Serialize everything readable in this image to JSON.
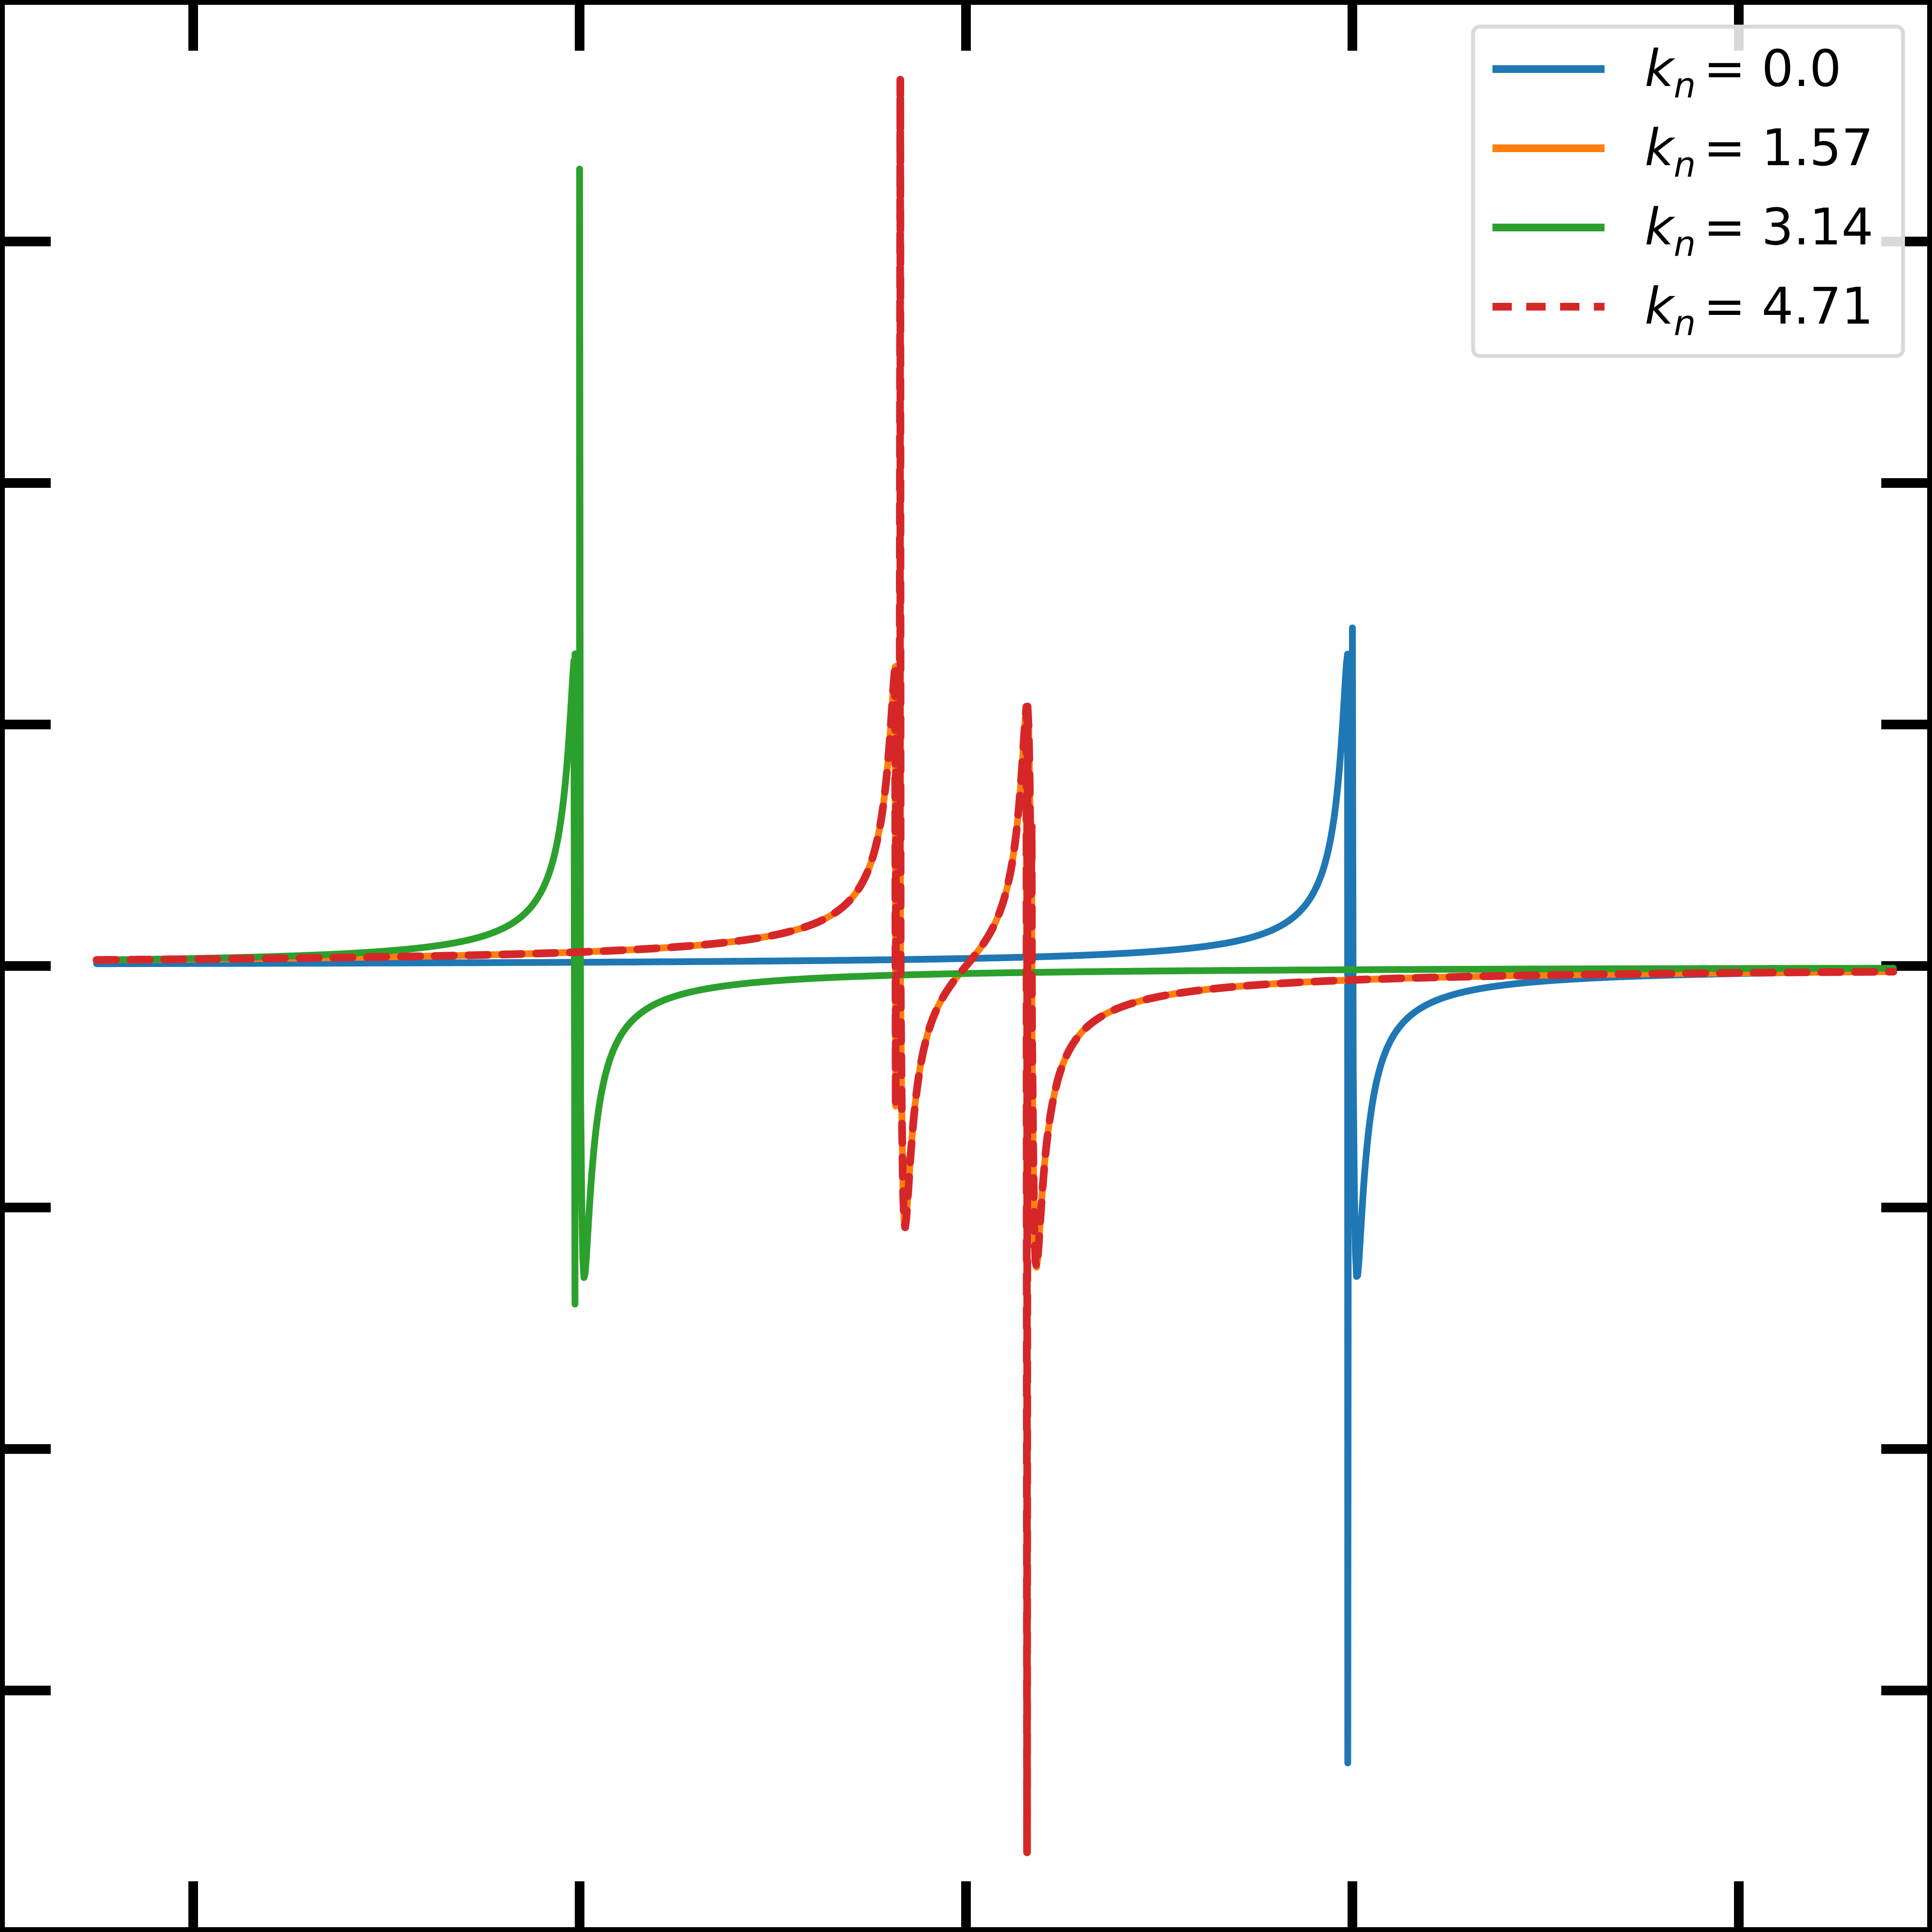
{
  "chart_data": {
    "type": "line",
    "title": "",
    "xlabel": "",
    "ylabel": "",
    "xlim": [
      -3.0,
      2.0
    ],
    "ylim": [
      -4.0,
      4.0
    ],
    "grid": false,
    "legend_position": "top-right",
    "x_ticks": [
      -2.5,
      -1.5,
      -0.5,
      0.5,
      1.5
    ],
    "y_ticks": [
      -4.0,
      -3.0,
      -2.0,
      -1.0,
      0.0,
      1.0,
      2.0,
      3.0,
      4.0
    ],
    "series": [
      {
        "name": "k_n = 0.0",
        "label_base": "k",
        "label_sub": "n",
        "label_value": "= 0.0",
        "color": "#1f77b4",
        "style": "solid",
        "resonances": [
          {
            "x": 0.5,
            "peak": 1.4,
            "trough": -3.3
          }
        ]
      },
      {
        "name": "k_n = 1.57",
        "label_base": "k",
        "label_sub": "n",
        "label_value": "= 1.57",
        "color": "#ff7f0e",
        "style": "solid",
        "resonances": [
          {
            "x": -0.67,
            "peak": 3.67,
            "trough": -0.58
          },
          {
            "x": -0.33,
            "peak": 0.58,
            "trough": -3.67
          }
        ]
      },
      {
        "name": "k_n = 3.14",
        "label_base": "k",
        "label_sub": "n",
        "label_value": "= 3.14",
        "color": "#2ca02c",
        "style": "solid",
        "resonances": [
          {
            "x": -1.5,
            "peak": 3.3,
            "trough": -1.4
          }
        ]
      },
      {
        "name": "k_n = 4.71",
        "label_base": "k",
        "label_sub": "n",
        "label_value": "= 4.71",
        "color": "#d62728",
        "style": "dashed",
        "resonances": [
          {
            "x": -0.67,
            "peak": 3.67,
            "trough": -0.58
          },
          {
            "x": -0.33,
            "peak": 0.58,
            "trough": -3.67
          }
        ]
      }
    ]
  }
}
